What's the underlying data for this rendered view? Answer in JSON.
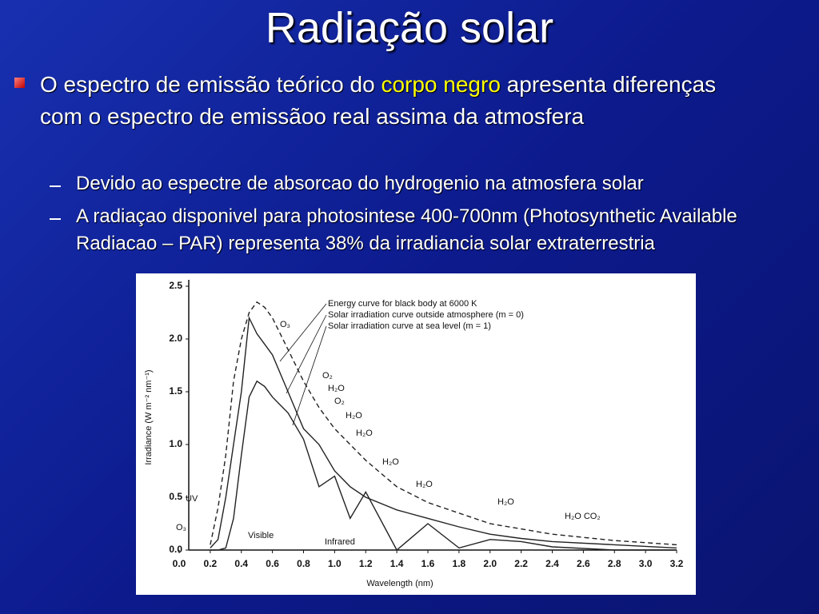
{
  "slide": {
    "title": "Radiação solar",
    "bullet": [
      "O espectro de emissão teórico do ",
      "corpo negro",
      " apresenta diferenças com o espectro de emissãoo real assima da atmosfera"
    ],
    "sub_bullets": [
      "Devido ao espectre de absorcao do hydrogenio na atmosfera solar",
      "A radiaçao disponivel para photosintese 400-700nm (Photosynthetic Available Radiacao – PAR) representa 38% da irradiancia solar extraterrestria"
    ]
  },
  "chart_data": {
    "type": "line",
    "x_label": "Wavelength (nm)",
    "y_label": "Irradiance (W m⁻² nm⁻¹)",
    "xlim": [
      0,
      3.2
    ],
    "ylim": [
      0,
      2.5
    ],
    "xticks": [
      {
        "value": 0,
        "label": "0.0"
      },
      0.2,
      0.4,
      0.6,
      0.8,
      {
        "value": 1,
        "label": "1.0"
      },
      1.2,
      1.4,
      1.6,
      1.8,
      {
        "value": 2,
        "label": "2.0"
      },
      2.2,
      2.4,
      2.6,
      2.8,
      {
        "value": 3,
        "label": "3.0"
      },
      3.2
    ],
    "yticks": [
      {
        "value": 0,
        "label": "0.0"
      },
      0.5,
      {
        "value": 1,
        "label": "1.0"
      },
      1.5,
      {
        "value": 2,
        "label": "2.0"
      },
      2.5
    ],
    "x": [
      0.2,
      0.25,
      0.3,
      0.35,
      0.4,
      0.45,
      0.5,
      0.55,
      0.6,
      0.7,
      0.8,
      0.9,
      1.0,
      1.1,
      1.2,
      1.4,
      1.6,
      1.8,
      2.0,
      2.2,
      2.4,
      2.8,
      3.2
    ],
    "series": [
      {
        "name": "Energy curve for black body at 6000 K",
        "color": "#222222",
        "dashed": true,
        "values": [
          0.05,
          0.4,
          0.9,
          1.6,
          2.0,
          2.25,
          2.35,
          2.3,
          2.2,
          1.9,
          1.6,
          1.35,
          1.15,
          1.0,
          0.85,
          0.6,
          0.45,
          0.35,
          0.25,
          0.2,
          0.15,
          0.09,
          0.05
        ]
      },
      {
        "name": "Solar irradiation curve outside atmosphere (m = 0)",
        "color": "#222222",
        "dashed": false,
        "values": [
          0.02,
          0.1,
          0.5,
          1.0,
          1.5,
          2.2,
          2.05,
          1.95,
          1.85,
          1.5,
          1.15,
          1.0,
          0.75,
          0.6,
          0.5,
          0.38,
          0.3,
          0.22,
          0.15,
          0.11,
          0.08,
          0.05,
          0.02
        ]
      },
      {
        "name": "Solar irradiation curve at sea level (m = 1)",
        "color": "#222222",
        "dashed": false,
        "values": [
          0,
          0,
          0.02,
          0.3,
          0.9,
          1.45,
          1.6,
          1.55,
          1.45,
          1.3,
          1.05,
          0.6,
          0.7,
          0.3,
          0.55,
          0,
          0.25,
          0.02,
          0.1,
          0.08,
          0.03,
          0,
          0
        ]
      }
    ],
    "annotations": [
      "O₃",
      "O₂",
      "H₂O",
      "O₂",
      "H₂O",
      "H₂O",
      "H₂O",
      "H₂O",
      "H₂O",
      "H₂O CO₂",
      "UV",
      "O₃",
      "Visible",
      "Infrared"
    ]
  }
}
